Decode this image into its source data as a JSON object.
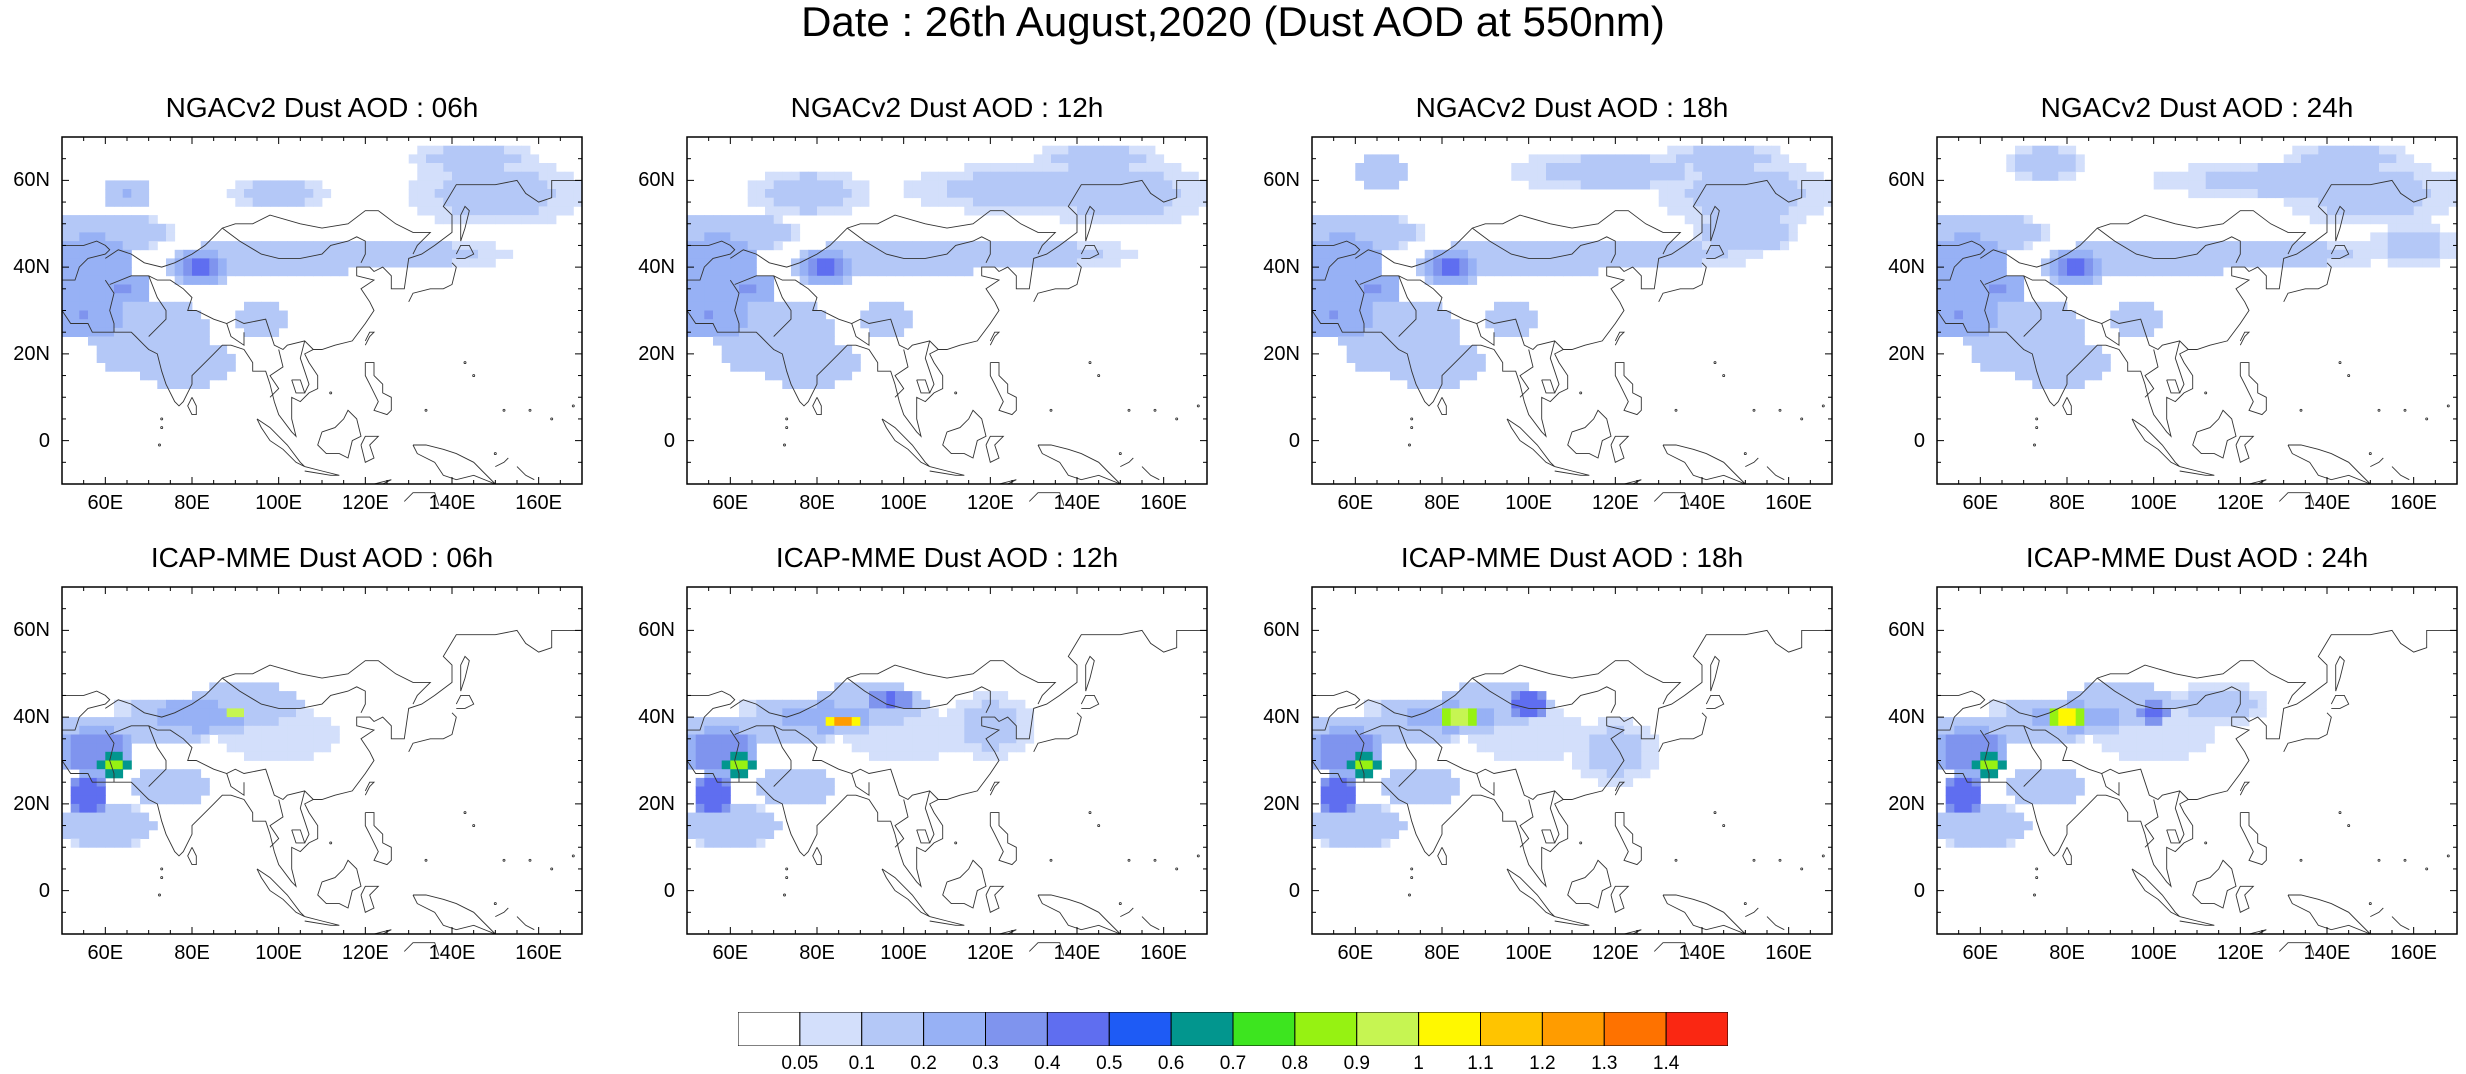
{
  "figure": {
    "title": "Date : 26th August,2020 (Dust AOD at 550nm)"
  },
  "panels": [
    {
      "title": "NGACv2 Dust AOD : 06h",
      "model": "NGACv2",
      "hour": 6
    },
    {
      "title": "NGACv2 Dust AOD : 12h",
      "model": "NGACv2",
      "hour": 12
    },
    {
      "title": "NGACv2 Dust AOD : 18h",
      "model": "NGACv2",
      "hour": 18
    },
    {
      "title": "NGACv2 Dust AOD : 24h",
      "model": "NGACv2",
      "hour": 24
    },
    {
      "title": "ICAP-MME Dust AOD : 06h",
      "model": "ICAP-MME",
      "hour": 6
    },
    {
      "title": "ICAP-MME Dust AOD : 12h",
      "model": "ICAP-MME",
      "hour": 12
    },
    {
      "title": "ICAP-MME Dust AOD : 18h",
      "model": "ICAP-MME",
      "hour": 18
    },
    {
      "title": "ICAP-MME Dust AOD : 24h",
      "model": "ICAP-MME",
      "hour": 24
    }
  ],
  "map_extent": {
    "lon": [
      50,
      170
    ],
    "lat": [
      -10,
      70
    ]
  },
  "lat_ticks": [
    {
      "value": 60,
      "label": "60N"
    },
    {
      "value": 40,
      "label": "40N"
    },
    {
      "value": 20,
      "label": "20N"
    },
    {
      "value": 0,
      "label": "0"
    }
  ],
  "lon_ticks": [
    {
      "value": 60,
      "label": "60E"
    },
    {
      "value": 80,
      "label": "80E"
    },
    {
      "value": 100,
      "label": "100E"
    },
    {
      "value": 120,
      "label": "120E"
    },
    {
      "value": 140,
      "label": "140E"
    },
    {
      "value": 160,
      "label": "160E"
    }
  ],
  "colorbar": {
    "levels": [
      "0.05",
      "0.1",
      "0.2",
      "0.3",
      "0.4",
      "0.5",
      "0.6",
      "0.7",
      "0.8",
      "0.9",
      "1",
      "1.1",
      "1.2",
      "1.3",
      "1.4"
    ],
    "colors": [
      "#ffffff",
      "#d3dffb",
      "#b4c8f7",
      "#97b1f5",
      "#7f94ee",
      "#5f6ef0",
      "#1e5bf5",
      "#02968e",
      "#3de51f",
      "#96f212",
      "#c6f552",
      "#fff800",
      "#ffc400",
      "#ff9c00",
      "#fe7200",
      "#fa2712"
    ]
  }
}
